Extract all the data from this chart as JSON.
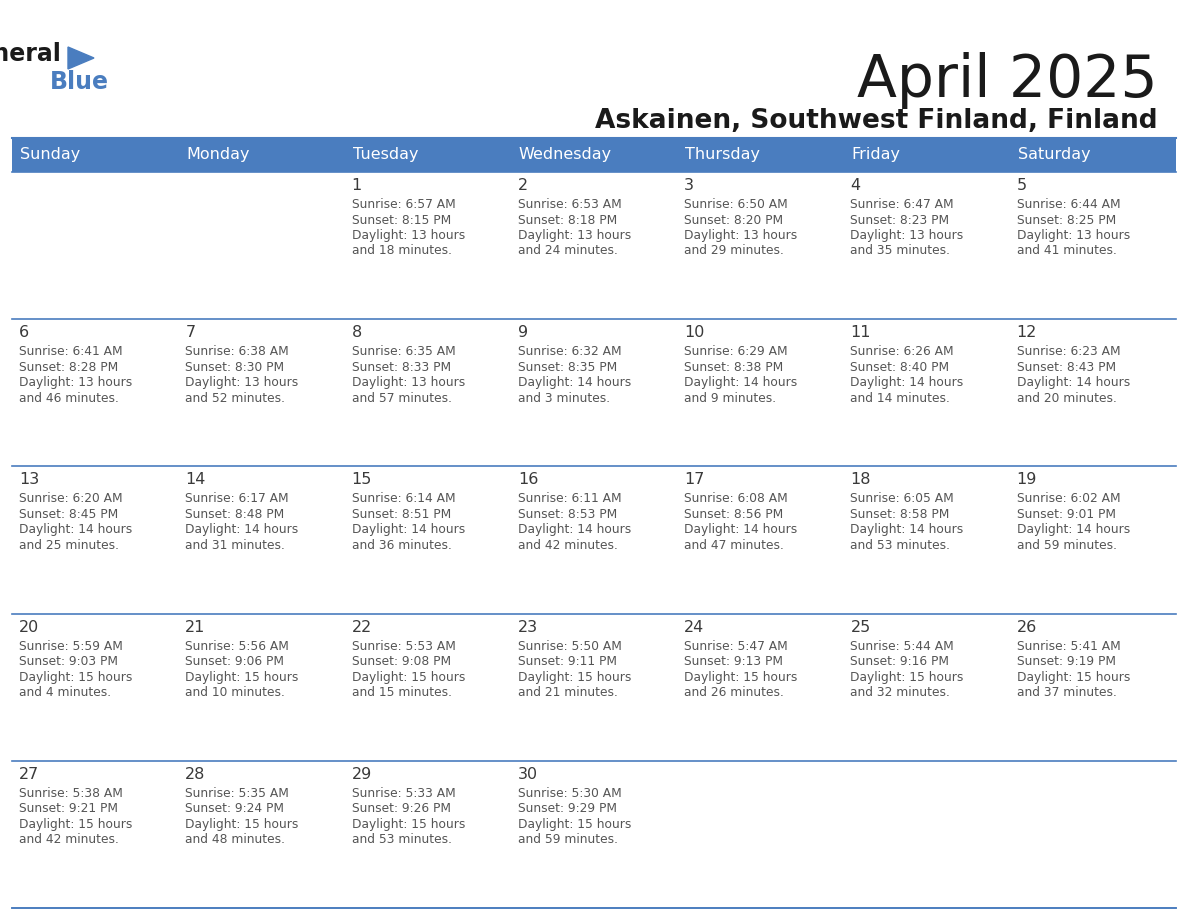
{
  "title": "April 2025",
  "subtitle": "Askainen, Southwest Finland, Finland",
  "header_color": "#4a7dbf",
  "header_text_color": "#ffffff",
  "cell_bg_color": "#ffffff",
  "day_number_color": "#3a3a3a",
  "cell_text_color": "#555555",
  "days_of_week": [
    "Sunday",
    "Monday",
    "Tuesday",
    "Wednesday",
    "Thursday",
    "Friday",
    "Saturday"
  ],
  "title_color": "#1a1a1a",
  "subtitle_color": "#1a1a1a",
  "logo_triangle_color": "#4a7dbf",
  "weeks": [
    [
      {
        "day": null,
        "sunrise": null,
        "sunset": null,
        "daylight": null
      },
      {
        "day": null,
        "sunrise": null,
        "sunset": null,
        "daylight": null
      },
      {
        "day": 1,
        "sunrise": "6:57 AM",
        "sunset": "8:15 PM",
        "daylight": "13 hours and 18 minutes."
      },
      {
        "day": 2,
        "sunrise": "6:53 AM",
        "sunset": "8:18 PM",
        "daylight": "13 hours and 24 minutes."
      },
      {
        "day": 3,
        "sunrise": "6:50 AM",
        "sunset": "8:20 PM",
        "daylight": "13 hours and 29 minutes."
      },
      {
        "day": 4,
        "sunrise": "6:47 AM",
        "sunset": "8:23 PM",
        "daylight": "13 hours and 35 minutes."
      },
      {
        "day": 5,
        "sunrise": "6:44 AM",
        "sunset": "8:25 PM",
        "daylight": "13 hours and 41 minutes."
      }
    ],
    [
      {
        "day": 6,
        "sunrise": "6:41 AM",
        "sunset": "8:28 PM",
        "daylight": "13 hours and 46 minutes."
      },
      {
        "day": 7,
        "sunrise": "6:38 AM",
        "sunset": "8:30 PM",
        "daylight": "13 hours and 52 minutes."
      },
      {
        "day": 8,
        "sunrise": "6:35 AM",
        "sunset": "8:33 PM",
        "daylight": "13 hours and 57 minutes."
      },
      {
        "day": 9,
        "sunrise": "6:32 AM",
        "sunset": "8:35 PM",
        "daylight": "14 hours and 3 minutes."
      },
      {
        "day": 10,
        "sunrise": "6:29 AM",
        "sunset": "8:38 PM",
        "daylight": "14 hours and 9 minutes."
      },
      {
        "day": 11,
        "sunrise": "6:26 AM",
        "sunset": "8:40 PM",
        "daylight": "14 hours and 14 minutes."
      },
      {
        "day": 12,
        "sunrise": "6:23 AM",
        "sunset": "8:43 PM",
        "daylight": "14 hours and 20 minutes."
      }
    ],
    [
      {
        "day": 13,
        "sunrise": "6:20 AM",
        "sunset": "8:45 PM",
        "daylight": "14 hours and 25 minutes."
      },
      {
        "day": 14,
        "sunrise": "6:17 AM",
        "sunset": "8:48 PM",
        "daylight": "14 hours and 31 minutes."
      },
      {
        "day": 15,
        "sunrise": "6:14 AM",
        "sunset": "8:51 PM",
        "daylight": "14 hours and 36 minutes."
      },
      {
        "day": 16,
        "sunrise": "6:11 AM",
        "sunset": "8:53 PM",
        "daylight": "14 hours and 42 minutes."
      },
      {
        "day": 17,
        "sunrise": "6:08 AM",
        "sunset": "8:56 PM",
        "daylight": "14 hours and 47 minutes."
      },
      {
        "day": 18,
        "sunrise": "6:05 AM",
        "sunset": "8:58 PM",
        "daylight": "14 hours and 53 minutes."
      },
      {
        "day": 19,
        "sunrise": "6:02 AM",
        "sunset": "9:01 PM",
        "daylight": "14 hours and 59 minutes."
      }
    ],
    [
      {
        "day": 20,
        "sunrise": "5:59 AM",
        "sunset": "9:03 PM",
        "daylight": "15 hours and 4 minutes."
      },
      {
        "day": 21,
        "sunrise": "5:56 AM",
        "sunset": "9:06 PM",
        "daylight": "15 hours and 10 minutes."
      },
      {
        "day": 22,
        "sunrise": "5:53 AM",
        "sunset": "9:08 PM",
        "daylight": "15 hours and 15 minutes."
      },
      {
        "day": 23,
        "sunrise": "5:50 AM",
        "sunset": "9:11 PM",
        "daylight": "15 hours and 21 minutes."
      },
      {
        "day": 24,
        "sunrise": "5:47 AM",
        "sunset": "9:13 PM",
        "daylight": "15 hours and 26 minutes."
      },
      {
        "day": 25,
        "sunrise": "5:44 AM",
        "sunset": "9:16 PM",
        "daylight": "15 hours and 32 minutes."
      },
      {
        "day": 26,
        "sunrise": "5:41 AM",
        "sunset": "9:19 PM",
        "daylight": "15 hours and 37 minutes."
      }
    ],
    [
      {
        "day": 27,
        "sunrise": "5:38 AM",
        "sunset": "9:21 PM",
        "daylight": "15 hours and 42 minutes."
      },
      {
        "day": 28,
        "sunrise": "5:35 AM",
        "sunset": "9:24 PM",
        "daylight": "15 hours and 48 minutes."
      },
      {
        "day": 29,
        "sunrise": "5:33 AM",
        "sunset": "9:26 PM",
        "daylight": "15 hours and 53 minutes."
      },
      {
        "day": 30,
        "sunrise": "5:30 AM",
        "sunset": "9:29 PM",
        "daylight": "15 hours and 59 minutes."
      },
      {
        "day": null,
        "sunrise": null,
        "sunset": null,
        "daylight": null
      },
      {
        "day": null,
        "sunrise": null,
        "sunset": null,
        "daylight": null
      },
      {
        "day": null,
        "sunrise": null,
        "sunset": null,
        "daylight": null
      }
    ]
  ]
}
